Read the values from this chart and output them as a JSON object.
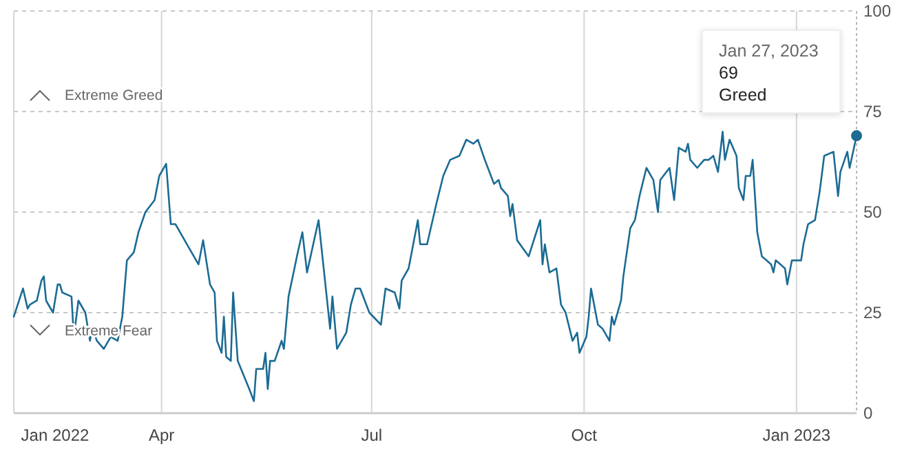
{
  "chart_data": {
    "type": "line",
    "color": "#1b6b93",
    "x": [
      "2022-01-27",
      "2022-01-31",
      "2022-02-02",
      "2022-02-03",
      "2022-02-06",
      "2022-02-08",
      "2022-02-09",
      "2022-02-10",
      "2022-02-13",
      "2022-02-15",
      "2022-02-16",
      "2022-02-17",
      "2022-02-21",
      "2022-02-22",
      "2022-02-24",
      "2022-02-27",
      "2022-03-01",
      "2022-03-02",
      "2022-03-04",
      "2022-03-07",
      "2022-03-10",
      "2022-03-13",
      "2022-03-15",
      "2022-03-17",
      "2022-03-20",
      "2022-03-22",
      "2022-03-25",
      "2022-03-29",
      "2022-03-31",
      "2022-04-03",
      "2022-04-05",
      "2022-04-07",
      "2022-04-13",
      "2022-04-17",
      "2022-04-19",
      "2022-04-22",
      "2022-04-24",
      "2022-04-25",
      "2022-04-27",
      "2022-04-28",
      "2022-04-29",
      "2022-05-01",
      "2022-05-02",
      "2022-05-04",
      "2022-05-09",
      "2022-05-11",
      "2022-05-12",
      "2022-05-15",
      "2022-05-16",
      "2022-05-17",
      "2022-05-18",
      "2022-05-20",
      "2022-05-23",
      "2022-05-24",
      "2022-05-26",
      "2022-05-30",
      "2022-06-01",
      "2022-06-03",
      "2022-06-08",
      "2022-06-13",
      "2022-06-14",
      "2022-06-16",
      "2022-06-20",
      "2022-06-22",
      "2022-06-24",
      "2022-06-26",
      "2022-06-30",
      "2022-07-05",
      "2022-07-07",
      "2022-07-11",
      "2022-07-13",
      "2022-07-14",
      "2022-07-17",
      "2022-07-21",
      "2022-07-22",
      "2022-07-25",
      "2022-07-29",
      "2022-08-01",
      "2022-08-04",
      "2022-08-08",
      "2022-08-11",
      "2022-08-14",
      "2022-08-16",
      "2022-08-19",
      "2022-08-23",
      "2022-08-25",
      "2022-08-26",
      "2022-08-29",
      "2022-08-30",
      "2022-08-31",
      "2022-09-02",
      "2022-09-07",
      "2022-09-12",
      "2022-09-13",
      "2022-09-14",
      "2022-09-16",
      "2022-09-19",
      "2022-09-21",
      "2022-09-23",
      "2022-09-26",
      "2022-09-28",
      "2022-09-29",
      "2022-10-02",
      "2022-10-03",
      "2022-10-04",
      "2022-10-07",
      "2022-10-09",
      "2022-10-12",
      "2022-10-13",
      "2022-10-14",
      "2022-10-17",
      "2022-10-18",
      "2022-10-21",
      "2022-10-23",
      "2022-10-25",
      "2022-10-28",
      "2022-10-31",
      "2022-11-02",
      "2022-11-03",
      "2022-11-07",
      "2022-11-09",
      "2022-11-11",
      "2022-11-14",
      "2022-11-15",
      "2022-11-16",
      "2022-11-19",
      "2022-11-22",
      "2022-11-24",
      "2022-11-26",
      "2022-11-28",
      "2022-11-30",
      "2022-12-01",
      "2022-12-03",
      "2022-12-06",
      "2022-12-07",
      "2022-12-09",
      "2022-12-10",
      "2022-12-12",
      "2022-12-13",
      "2022-12-15",
      "2022-12-17",
      "2022-12-19",
      "2022-12-21",
      "2022-12-22",
      "2022-12-23",
      "2022-12-27",
      "2022-12-28",
      "2022-12-30",
      "2023-01-03",
      "2023-01-04",
      "2023-01-06",
      "2023-01-09",
      "2023-01-11",
      "2023-01-13",
      "2023-01-17",
      "2023-01-19",
      "2023-01-20",
      "2023-01-23",
      "2023-01-24",
      "2023-01-27"
    ],
    "values": [
      24,
      31,
      26,
      27,
      28,
      33,
      34,
      28,
      25,
      32,
      32,
      30,
      29,
      19,
      28,
      25,
      18,
      21,
      18,
      16,
      19,
      18,
      24,
      38,
      40,
      45,
      50,
      53,
      59,
      62,
      47,
      47,
      41,
      37,
      43,
      32,
      30,
      18,
      15,
      24,
      14,
      13,
      30,
      13,
      6,
      3,
      11,
      11,
      15,
      6,
      13,
      13,
      18,
      16,
      29,
      40,
      45,
      35,
      48,
      21,
      29,
      16,
      20,
      27,
      31,
      31,
      25,
      22,
      31,
      30,
      26,
      33,
      36,
      48,
      42,
      42,
      52,
      59,
      63,
      64,
      68,
      67,
      68,
      63,
      57,
      58,
      56,
      54,
      49,
      52,
      43,
      39,
      48,
      37,
      42,
      35,
      36,
      27,
      25,
      18,
      20,
      15,
      19,
      24,
      31,
      22,
      21,
      18,
      24,
      22,
      28,
      34,
      46,
      48,
      54,
      61,
      58,
      50,
      58,
      61,
      53,
      66,
      65,
      67,
      63,
      61,
      63,
      63,
      64,
      60,
      70,
      63,
      68,
      64,
      56,
      53,
      59,
      59,
      63,
      45,
      39,
      38,
      37,
      35,
      38,
      36,
      32,
      38,
      38,
      42,
      47,
      48,
      55,
      64,
      65,
      54,
      60,
      65,
      61,
      69
    ],
    "xlim": [
      "2022-01-27",
      "2023-01-27"
    ],
    "xticks": [
      {
        "value": "2022-01-27",
        "label": "Jan 2022"
      },
      {
        "value": "2022-04-01",
        "label": "Apr"
      },
      {
        "value": "2022-07-01",
        "label": "Jul"
      },
      {
        "value": "2022-10-01",
        "label": "Oct"
      },
      {
        "value": "2023-01-01",
        "label": "Jan 2023"
      }
    ],
    "ylim": [
      0,
      100
    ],
    "yticks": [
      0,
      25,
      50,
      75,
      100
    ],
    "grid": true,
    "marker": "none",
    "line_style": "solid",
    "annotations": [
      "Extreme Greed",
      "Extreme Fear",
      "Jan 27, 2023\n69\nGreed"
    ]
  }
}
